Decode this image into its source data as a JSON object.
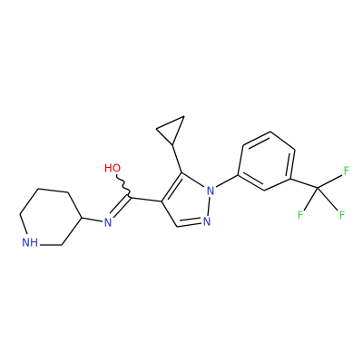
{
  "atoms": [
    "HO",
    "N",
    "N",
    "N",
    "NH",
    "F",
    "F",
    "F"
  ]
}
